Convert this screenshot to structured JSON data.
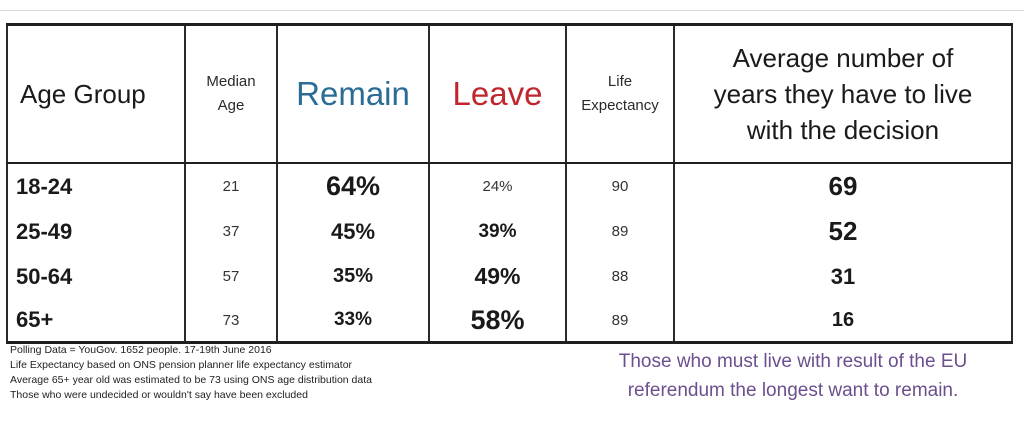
{
  "table": {
    "headers": {
      "age_group": "Age Group",
      "median_age": [
        "Median",
        "Age"
      ],
      "remain": "Remain",
      "leave": "Leave",
      "life_expectancy": [
        "Life",
        "Expectancy"
      ],
      "average_years": [
        "Average number of",
        "years they have to live",
        "with the decision"
      ]
    },
    "rows": [
      {
        "age_group": "18-24",
        "median_age": "21",
        "remain": "64%",
        "leave": "24%",
        "life_expectancy": "90",
        "average_years": "69"
      },
      {
        "age_group": "25-49",
        "median_age": "37",
        "remain": "45%",
        "leave": "39%",
        "life_expectancy": "89",
        "average_years": "52"
      },
      {
        "age_group": "50-64",
        "median_age": "57",
        "remain": "35%",
        "leave": "49%",
        "life_expectancy": "88",
        "average_years": "31"
      },
      {
        "age_group": "65+",
        "median_age": "73",
        "remain": "33%",
        "leave": "58%",
        "life_expectancy": "89",
        "average_years": "16"
      }
    ]
  },
  "notes": [
    "Polling Data = YouGov. 1652 people. 17-19th June 2016",
    "Life Expectancy based on ONS pension planner life expectancy estimator",
    "Average 65+ year old was estimated to be 73 using ONS age distribution data",
    "Those who were undecided or wouldn't say have been excluded"
  ],
  "caption": [
    "Those who must live with result of the EU",
    "referendum the longest want to remain."
  ],
  "colors": {
    "remain": "#2a6c95",
    "leave": "#c0262d",
    "caption": "#6c4f8e"
  }
}
